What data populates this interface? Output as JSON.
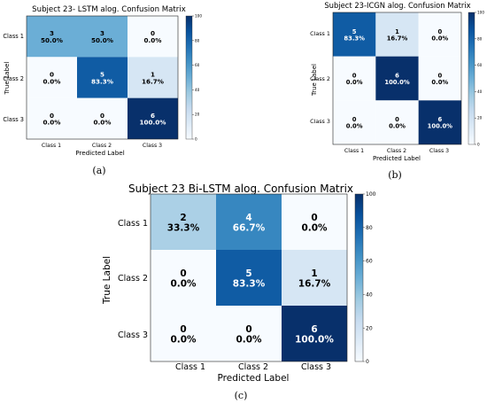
{
  "panel_labels": [
    "(a)",
    "(b)",
    "(c)"
  ],
  "chart_data": [
    {
      "type": "heatmap",
      "title": "Subject 23- LSTM alog. Confusion Matrix",
      "xlabel": "Predicted Label",
      "ylabel": "True Label",
      "x_categories": [
        "Class 1",
        "Class 2",
        "Class 3"
      ],
      "y_categories": [
        "Class 1",
        "Class 2",
        "Class 3"
      ],
      "counts": [
        [
          3,
          3,
          0
        ],
        [
          0,
          5,
          1
        ],
        [
          0,
          0,
          6
        ]
      ],
      "percent_labels": [
        [
          "50.0%",
          "50.0%",
          "0.0%"
        ],
        [
          "0.0%",
          "83.3%",
          "16.7%"
        ],
        [
          "0.0%",
          "0.0%",
          "100.0%"
        ]
      ],
      "percent_values": [
        [
          50.0,
          50.0,
          0.0
        ],
        [
          0.0,
          83.3,
          16.7
        ],
        [
          0.0,
          0.0,
          100.0
        ]
      ],
      "colorbar": {
        "range": [
          0,
          100
        ],
        "ticks": [
          "0",
          "20",
          "40",
          "60",
          "80",
          "100"
        ]
      }
    },
    {
      "type": "heatmap",
      "title": "Subject 23-ICGN alog. Confusion Matrix",
      "xlabel": "Predicted Label",
      "ylabel": "True Label",
      "x_categories": [
        "Class 1",
        "Class 2",
        "Class 3"
      ],
      "y_categories": [
        "Class 1",
        "Class 2",
        "Class 3"
      ],
      "counts": [
        [
          5,
          1,
          0
        ],
        [
          0,
          6,
          0
        ],
        [
          0,
          0,
          6
        ]
      ],
      "percent_labels": [
        [
          "83.3%",
          "16.7%",
          "0.0%"
        ],
        [
          "0.0%",
          "100.0%",
          "0.0%"
        ],
        [
          "0.0%",
          "0.0%",
          "100.0%"
        ]
      ],
      "percent_values": [
        [
          83.3,
          16.7,
          0.0
        ],
        [
          0.0,
          100.0,
          0.0
        ],
        [
          0.0,
          0.0,
          100.0
        ]
      ],
      "colorbar": {
        "range": [
          0,
          100
        ],
        "ticks": [
          "0",
          "20",
          "40",
          "60",
          "80",
          "100"
        ]
      }
    },
    {
      "type": "heatmap",
      "title": "Subject 23 Bi-LSTM alog. Confusion Matrix",
      "xlabel": "Predicted Label",
      "ylabel": "True Label",
      "x_categories": [
        "Class 1",
        "Class 2",
        "Class 3"
      ],
      "y_categories": [
        "Class 1",
        "Class 2",
        "Class 3"
      ],
      "counts": [
        [
          2,
          4,
          0
        ],
        [
          0,
          5,
          1
        ],
        [
          0,
          0,
          6
        ]
      ],
      "percent_labels": [
        [
          "33.3%",
          "66.7%",
          "0.0%"
        ],
        [
          "0.0%",
          "83.3%",
          "16.7%"
        ],
        [
          "0.0%",
          "0.0%",
          "100.0%"
        ]
      ],
      "percent_values": [
        [
          33.3,
          66.7,
          0.0
        ],
        [
          0.0,
          83.3,
          16.7
        ],
        [
          0.0,
          0.0,
          100.0
        ]
      ],
      "colorbar": {
        "range": [
          0,
          100
        ],
        "ticks": [
          "0",
          "20",
          "40",
          "60",
          "80",
          "100"
        ]
      }
    }
  ]
}
